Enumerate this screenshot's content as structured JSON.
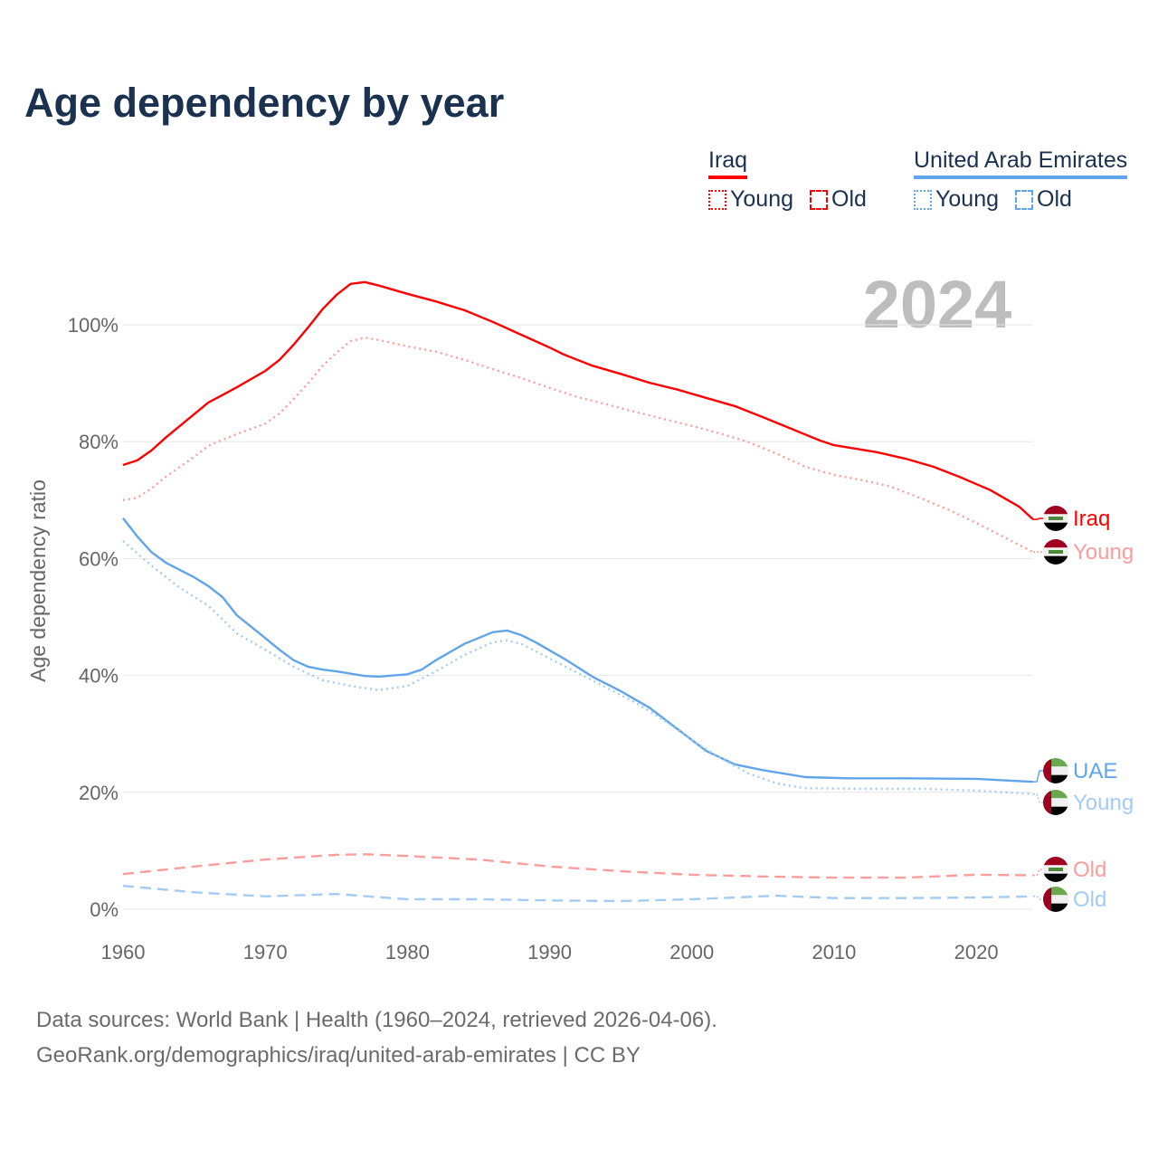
{
  "title": "Age dependency by year",
  "legend": {
    "groups": [
      {
        "name": "Iraq",
        "color": "#ff0000",
        "items": [
          {
            "label": "Young",
            "style": "dotted"
          },
          {
            "label": "Old",
            "style": "dashed"
          }
        ]
      },
      {
        "name": "United Arab Emirates",
        "color": "#60a5ea",
        "items": [
          {
            "label": "Young",
            "style": "dotted"
          },
          {
            "label": "Old",
            "style": "dashed"
          }
        ]
      }
    ]
  },
  "year_watermark": "2024",
  "footer": {
    "line1": "Data sources: World Bank | Health (1960–2024, retrieved 2026-04-06).",
    "line2": "GeoRank.org/demographics/iraq/united-arab-emirates | CC BY"
  },
  "chart_data": {
    "type": "line",
    "title": "Age dependency by year",
    "xlabel": "",
    "ylabel": "Age dependency ratio",
    "xlim": [
      1960,
      2024
    ],
    "ylim": [
      0,
      110
    ],
    "x_ticks": [
      1960,
      1970,
      1980,
      1990,
      2000,
      2010,
      2020
    ],
    "y_ticks": [
      0,
      20,
      40,
      60,
      80,
      100
    ],
    "y_tick_labels": [
      "0%",
      "20%",
      "40%",
      "60%",
      "80%",
      "100%"
    ],
    "grid": true,
    "series": [
      {
        "name": "Iraq",
        "end_label": "Iraq",
        "country": "iraq",
        "color": "#ff0000",
        "dash": "solid",
        "x": [
          1960,
          1961,
          1962,
          1963,
          1965,
          1966,
          1968,
          1970,
          1971,
          1972,
          1973,
          1974,
          1975,
          1976,
          1977,
          1978,
          1980,
          1982,
          1984,
          1986,
          1988,
          1990,
          1991,
          1993,
          1995,
          1997,
          1999,
          2001,
          2003,
          2005,
          2007,
          2009,
          2010,
          2013,
          2015,
          2017,
          2019,
          2021,
          2023,
          2024
        ],
        "y": [
          76.0,
          76.8,
          78.5,
          80.7,
          84.7,
          86.7,
          89.3,
          92.1,
          94.0,
          96.6,
          99.5,
          102.6,
          105.1,
          107.0,
          107.3,
          106.7,
          105.3,
          104.0,
          102.5,
          100.5,
          98.3,
          96.1,
          94.9,
          93.0,
          91.6,
          90.1,
          88.9,
          87.5,
          86.1,
          84.2,
          82.2,
          80.2,
          79.4,
          78.2,
          77.1,
          75.7,
          73.8,
          71.7,
          68.9,
          66.7
        ]
      },
      {
        "name": "Iraq Young",
        "end_label": "Young",
        "country": "iraq",
        "color": "#ff9c9c",
        "dash": "dotted",
        "x": [
          1960,
          1961,
          1962,
          1963,
          1965,
          1966,
          1968,
          1970,
          1971,
          1972,
          1973,
          1974,
          1975,
          1976,
          1977,
          1978,
          1980,
          1982,
          1984,
          1986,
          1988,
          1990,
          1992,
          1994,
          1996,
          1998,
          2000,
          2002,
          2004,
          2006,
          2008,
          2010,
          2012,
          2014,
          2016,
          2018,
          2020,
          2022,
          2024
        ],
        "y": [
          70.0,
          70.4,
          72.0,
          74.0,
          77.4,
          79.3,
          81.3,
          83.1,
          84.8,
          87.3,
          89.9,
          92.9,
          95.2,
          97.2,
          97.8,
          97.4,
          96.3,
          95.4,
          94.0,
          92.4,
          90.9,
          89.2,
          87.6,
          86.4,
          85.1,
          83.9,
          82.7,
          81.4,
          79.9,
          77.9,
          75.7,
          74.3,
          73.4,
          72.3,
          70.4,
          68.4,
          66.1,
          63.6,
          61.1
        ]
      },
      {
        "name": "Iraq Old",
        "end_label": "Old",
        "country": "iraq",
        "color": "#ff9c9c",
        "dash": "dashed",
        "x": [
          1960,
          1965,
          1970,
          1975,
          1977,
          1980,
          1985,
          1990,
          1995,
          2000,
          2005,
          2010,
          2015,
          2020,
          2024
        ],
        "y": [
          6.0,
          7.3,
          8.5,
          9.3,
          9.4,
          9.1,
          8.5,
          7.3,
          6.5,
          5.9,
          5.6,
          5.4,
          5.4,
          5.9,
          5.8
        ]
      },
      {
        "name": "UAE",
        "end_label": "UAE",
        "country": "uae",
        "color": "#60a5ea",
        "dash": "solid",
        "x": [
          1960,
          1961,
          1962,
          1963,
          1965,
          1966,
          1967,
          1968,
          1970,
          1971,
          1972,
          1973,
          1974,
          1975,
          1977,
          1978,
          1980,
          1981,
          1982,
          1984,
          1986,
          1987,
          1988,
          1989,
          1991,
          1993,
          1995,
          1997,
          1999,
          2001,
          2003,
          2005,
          2008,
          2011,
          2015,
          2020,
          2024
        ],
        "y": [
          66.9,
          63.8,
          61.1,
          59.3,
          56.8,
          55.3,
          53.4,
          50.3,
          46.4,
          44.4,
          42.6,
          41.5,
          41.0,
          40.7,
          39.9,
          39.8,
          40.2,
          41.0,
          42.6,
          45.4,
          47.4,
          47.7,
          46.9,
          45.7,
          42.9,
          39.8,
          37.3,
          34.5,
          30.8,
          27.1,
          24.8,
          23.8,
          22.6,
          22.4,
          22.4,
          22.3,
          21.8
        ]
      },
      {
        "name": "UAE Young",
        "end_label": "Young",
        "country": "uae",
        "color": "#a3cbf3",
        "dash": "dotted",
        "x": [
          1960,
          1962,
          1964,
          1966,
          1968,
          1970,
          1972,
          1974,
          1976,
          1978,
          1980,
          1982,
          1984,
          1986,
          1987,
          1988,
          1990,
          1992,
          1994,
          1996,
          1998,
          2000,
          2002,
          2004,
          2006,
          2008,
          2012,
          2016,
          2020,
          2024
        ],
        "y": [
          63.0,
          58.8,
          55.0,
          51.9,
          47.2,
          44.4,
          41.5,
          39.2,
          38.2,
          37.5,
          38.2,
          40.7,
          43.5,
          45.7,
          46.0,
          45.4,
          42.9,
          40.4,
          37.9,
          35.4,
          32.4,
          28.9,
          25.9,
          23.2,
          21.5,
          20.7,
          20.6,
          20.6,
          20.3,
          19.7
        ]
      },
      {
        "name": "UAE Old",
        "end_label": "Old",
        "country": "uae",
        "color": "#a3cbf3",
        "dash": "dashed",
        "x": [
          1960,
          1965,
          1970,
          1975,
          1980,
          1985,
          1990,
          1995,
          2000,
          2006,
          2010,
          2015,
          2020,
          2024
        ],
        "y": [
          4.0,
          2.9,
          2.2,
          2.6,
          1.7,
          1.7,
          1.5,
          1.4,
          1.7,
          2.3,
          1.9,
          1.9,
          2.0,
          2.2
        ]
      }
    ]
  }
}
